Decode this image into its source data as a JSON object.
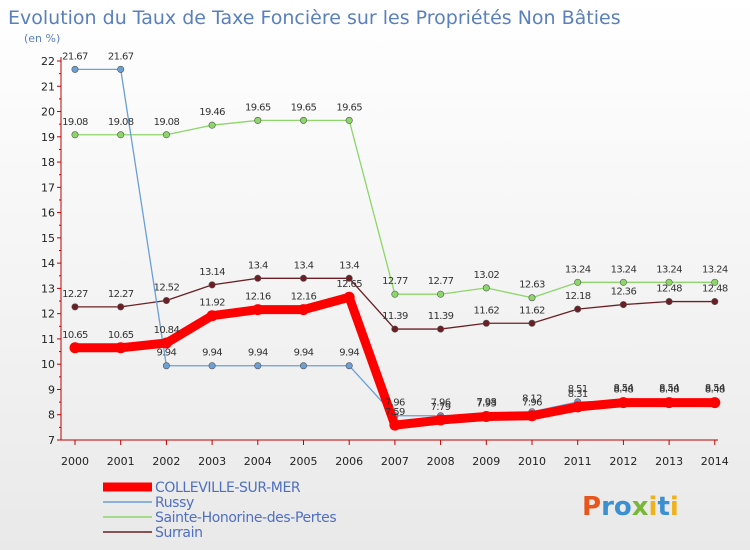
{
  "chart_data": {
    "type": "line",
    "title": "Evolution du Taux de Taxe Foncière sur les Propriétés Non Bâties",
    "ylabel": "(en %)",
    "xlabel": "",
    "x": [
      "2000",
      "2001",
      "2002",
      "2003",
      "2004",
      "2005",
      "2006",
      "2007",
      "2008",
      "2009",
      "2010",
      "2011",
      "2012",
      "2013",
      "2014"
    ],
    "ylim": [
      7,
      22
    ],
    "yticks": [
      "7",
      "8",
      "9",
      "10",
      "11",
      "12",
      "13",
      "14",
      "15",
      "16",
      "17",
      "18",
      "19",
      "20",
      "21",
      "22"
    ],
    "grid": false,
    "legend_position": "bottom-left",
    "series": [
      {
        "name": "COLLEVILLE-SUR-MER",
        "color": "#ff0000",
        "values": [
          10.65,
          10.65,
          10.84,
          11.92,
          12.16,
          12.16,
          12.65,
          7.59,
          7.79,
          7.93,
          7.96,
          8.31,
          8.48,
          8.48,
          8.48
        ],
        "labels": [
          "10.65",
          "10.65",
          "10.84",
          "11.92",
          "12.16",
          "12.16",
          "12.65",
          "7.59",
          "7.79",
          "7.93",
          "7.96",
          "8.31",
          "8.48",
          "8.48",
          "8.48"
        ]
      },
      {
        "name": "Russy",
        "color": "#6a9fd8",
        "values": [
          21.67,
          21.67,
          9.94,
          9.94,
          9.94,
          9.94,
          9.94,
          7.96,
          7.96,
          7.98,
          8.12,
          8.51,
          8.54,
          8.54,
          8.54
        ],
        "labels": [
          "21.67",
          "21.67",
          "9.94",
          "9.94",
          "9.94",
          "9.94",
          "9.94",
          "7.96",
          "7.96",
          "7.98",
          "8.12",
          "8.51",
          "8.54",
          "8.54",
          "8.54"
        ]
      },
      {
        "name": "Sainte-Honorine-des-Pertes",
        "color": "#8cd66a",
        "values": [
          19.08,
          19.08,
          19.08,
          19.46,
          19.65,
          19.65,
          19.65,
          12.77,
          12.77,
          13.02,
          12.63,
          13.24,
          13.24,
          13.24,
          13.24
        ],
        "labels": [
          "19.08",
          "19.08",
          "19.08",
          "19.46",
          "19.65",
          "19.65",
          "19.65",
          "12.77",
          "12.77",
          "13.02",
          "12.63",
          "13.24",
          "13.24",
          "13.24",
          "13.24"
        ]
      },
      {
        "name": "Surrain",
        "color": "#6b1f25",
        "values": [
          12.27,
          12.27,
          12.52,
          13.14,
          13.4,
          13.4,
          13.4,
          11.39,
          11.39,
          11.62,
          11.62,
          12.18,
          12.36,
          12.48,
          12.48
        ],
        "labels": [
          "12.27",
          "12.27",
          "12.52",
          "13.14",
          "13.4",
          "13.4",
          "13.4",
          "11.39",
          "11.39",
          "11.62",
          "11.62",
          "12.18",
          "12.36",
          "12.48",
          "12.48"
        ]
      }
    ]
  },
  "logo": {
    "text": "Proxiti",
    "colors": [
      "#e8561d",
      "#3c8fd0",
      "#79b63a",
      "#f0b21b"
    ]
  }
}
